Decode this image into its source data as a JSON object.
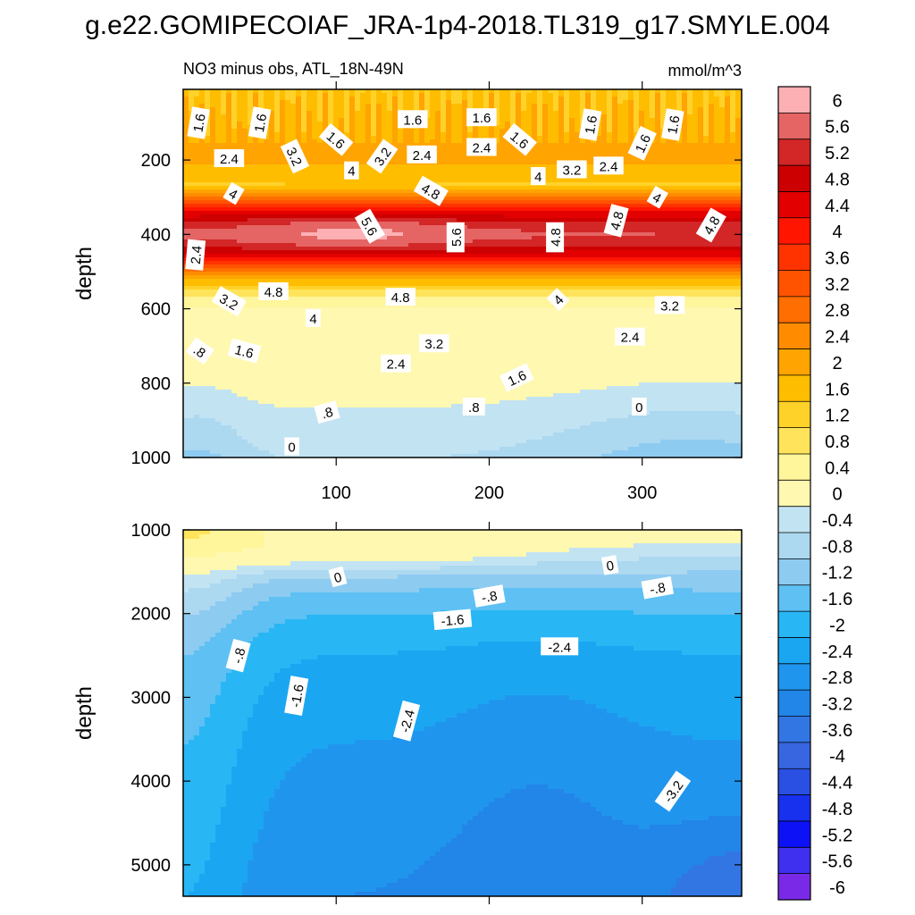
{
  "figure": {
    "title": "g.e22.GOMIPECOIAF_JRA-1p4-2018.TL319_g17.SMYLE.004",
    "subtitle_left": "NO3 minus obs, ATL_18N-49N",
    "subtitle_right": "mmol/m^3"
  },
  "chart_data": {
    "type": "heatmap",
    "title": "g.e22.GOMIPECOIAF_JRA-1p4-2018.TL319_g17.SMYLE.004",
    "subtitle": "NO3 minus obs, ATL_18N-49N",
    "units": "mmol/m^3",
    "colorbar": {
      "labels": [
        "6",
        "5.6",
        "5.2",
        "4.8",
        "4.4",
        "4",
        "3.6",
        "3.2",
        "2.8",
        "2.4",
        "2",
        "1.6",
        "1.2",
        "0.8",
        "0.4",
        "0",
        "-0.4",
        "-0.8",
        "-1.2",
        "-1.6",
        "-2",
        "-2.4",
        "-2.8",
        "-3.2",
        "-3.6",
        "-4",
        "-4.4",
        "-4.8",
        "-5.2",
        "-5.6",
        "-6"
      ],
      "levels": [
        6,
        5.6,
        5.2,
        4.8,
        4.4,
        4,
        3.6,
        3.2,
        2.8,
        2.4,
        2,
        1.6,
        1.2,
        0.8,
        0.4,
        0,
        -0.4,
        -0.8,
        -1.2,
        -1.6,
        -2,
        -2.4,
        -2.8,
        -3.2,
        -3.6,
        -4,
        -4.4,
        -4.8,
        -5.2,
        -5.6,
        -6
      ],
      "colors": [
        "#fdb0b3",
        "#e56464",
        "#d32626",
        "#cc0000",
        "#e20000",
        "#ff1500",
        "#ff3300",
        "#ff5300",
        "#ff6e00",
        "#ff8c00",
        "#ffa400",
        "#ffbd00",
        "#ffd22a",
        "#ffe35a",
        "#fff59a",
        "#fff8b0",
        "#c2e3f2",
        "#acd8f0",
        "#8ecbf1",
        "#5ec0f3",
        "#29b6f4",
        "#1ba6f2",
        "#2095ee",
        "#2285e8",
        "#3276e4",
        "#3766e0",
        "#2a4fe3",
        "#1731ee",
        "#0d12f6",
        "#3f2fef",
        "#7a2ae6"
      ]
    },
    "panels": [
      {
        "name": "upper",
        "ylabel": "depth",
        "xlim": [
          0,
          365
        ],
        "ylim": [
          1000,
          10
        ],
        "xticks": [
          "100",
          "200",
          "300"
        ],
        "xtick_values": [
          100,
          200,
          300
        ],
        "yticks": [
          "200",
          "400",
          "600",
          "800",
          "1000"
        ],
        "ytick_values": [
          200,
          400,
          600,
          800,
          1000
        ],
        "contour_labels": [
          {
            "text": "1.6",
            "x": 10,
            "y": 100,
            "rot": -80
          },
          {
            "text": "1.6",
            "x": 50,
            "y": 100,
            "rot": -80
          },
          {
            "text": "1.6",
            "x": 150,
            "y": 90,
            "rot": 0
          },
          {
            "text": "1.6",
            "x": 195,
            "y": 85,
            "rot": 0
          },
          {
            "text": "1.6",
            "x": 266,
            "y": 105,
            "rot": -80
          },
          {
            "text": "1.6",
            "x": 320,
            "y": 105,
            "rot": -80
          },
          {
            "text": "1.6",
            "x": 100,
            "y": 145,
            "rot": 40
          },
          {
            "text": "1.6",
            "x": 220,
            "y": 145,
            "rot": 40
          },
          {
            "text": "1.6",
            "x": 300,
            "y": 155,
            "rot": -65
          },
          {
            "text": "2.4",
            "x": 30,
            "y": 195,
            "rot": 0
          },
          {
            "text": "3.2",
            "x": 73,
            "y": 190,
            "rot": 65
          },
          {
            "text": "2.4",
            "x": 156,
            "y": 185,
            "rot": 0
          },
          {
            "text": "2.4",
            "x": 195,
            "y": 165,
            "rot": 0
          },
          {
            "text": "3.2",
            "x": 130,
            "y": 190,
            "rot": -55
          },
          {
            "text": "4",
            "x": 110,
            "y": 228,
            "rot": 0
          },
          {
            "text": "3.2",
            "x": 254,
            "y": 225,
            "rot": 0
          },
          {
            "text": "2.4",
            "x": 278,
            "y": 215,
            "rot": 0
          },
          {
            "text": "4",
            "x": 232,
            "y": 243,
            "rot": 0
          },
          {
            "text": "4.8",
            "x": 162,
            "y": 283,
            "rot": 30
          },
          {
            "text": "4",
            "x": 33,
            "y": 290,
            "rot": 30
          },
          {
            "text": "4",
            "x": 310,
            "y": 300,
            "rot": 30
          },
          {
            "text": "4.8",
            "x": 283,
            "y": 363,
            "rot": -75
          },
          {
            "text": "4.8",
            "x": 345,
            "y": 375,
            "rot": -60
          },
          {
            "text": "5.6",
            "x": 122,
            "y": 378,
            "rot": 60
          },
          {
            "text": "5.6",
            "x": 178,
            "y": 408,
            "rot": -90
          },
          {
            "text": "4.8",
            "x": 243,
            "y": 408,
            "rot": -90
          },
          {
            "text": "2.4",
            "x": 8,
            "y": 455,
            "rot": -85
          },
          {
            "text": "4.8",
            "x": 59,
            "y": 553,
            "rot": 0
          },
          {
            "text": "3.2",
            "x": 30,
            "y": 580,
            "rot": 30
          },
          {
            "text": "4.8",
            "x": 142,
            "y": 568,
            "rot": 0
          },
          {
            "text": "4",
            "x": 245,
            "y": 575,
            "rot": -45
          },
          {
            "text": "3.2",
            "x": 318,
            "y": 590,
            "rot": 0
          },
          {
            "text": "4",
            "x": 85,
            "y": 625,
            "rot": 0
          },
          {
            "text": "3.2",
            "x": 164,
            "y": 693,
            "rot": 0
          },
          {
            "text": "2.4",
            "x": 292,
            "y": 675,
            "rot": 0
          },
          {
            "text": "1.6",
            "x": 40,
            "y": 713,
            "rot": 15
          },
          {
            "text": "2.4",
            "x": 139,
            "y": 747,
            "rot": 0
          },
          {
            "text": ".8",
            "x": 11,
            "y": 713,
            "rot": 35
          },
          {
            "text": "1.6",
            "x": 218,
            "y": 785,
            "rot": -25
          },
          {
            "text": ".8",
            "x": 94,
            "y": 878,
            "rot": -15
          },
          {
            "text": ".8",
            "x": 190,
            "y": 863,
            "rot": 0
          },
          {
            "text": "0",
            "x": 298,
            "y": 863,
            "rot": 0
          },
          {
            "text": "0",
            "x": 71,
            "y": 970,
            "rot": 0
          }
        ]
      },
      {
        "name": "lower",
        "ylabel": "depth",
        "xlim": [
          0,
          365
        ],
        "ylim": [
          5375,
          1000
        ],
        "xticks": [],
        "xtick_values": [
          100,
          200,
          300
        ],
        "yticks": [
          "1000",
          "2000",
          "3000",
          "4000",
          "5000"
        ],
        "ytick_values": [
          1000,
          2000,
          3000,
          4000,
          5000
        ],
        "contour_labels": [
          {
            "text": "0",
            "x": 101,
            "y": 1560,
            "rot": -15
          },
          {
            "text": "0",
            "x": 279,
            "y": 1420,
            "rot": -10
          },
          {
            "text": "-.8",
            "x": 200,
            "y": 1790,
            "rot": -10
          },
          {
            "text": "-.8",
            "x": 310,
            "y": 1690,
            "rot": -10
          },
          {
            "text": "-1.6",
            "x": 176,
            "y": 2070,
            "rot": -5
          },
          {
            "text": "-2.4",
            "x": 246,
            "y": 2390,
            "rot": 0
          },
          {
            "text": "-.8",
            "x": 36,
            "y": 2500,
            "rot": -75
          },
          {
            "text": "-1.6",
            "x": 74,
            "y": 2980,
            "rot": -80
          },
          {
            "text": "-2.4",
            "x": 146,
            "y": 3280,
            "rot": -75
          },
          {
            "text": "-3.2",
            "x": 320,
            "y": 4120,
            "rot": -55
          }
        ]
      }
    ]
  }
}
